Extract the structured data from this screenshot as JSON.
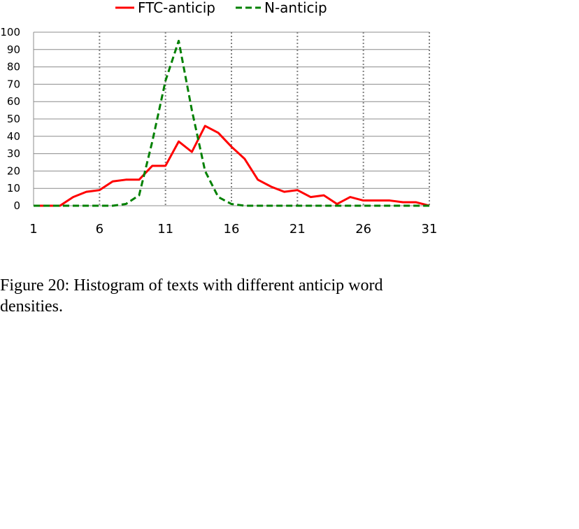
{
  "caption": "Figure 20: Histogram of texts with different anticip word densities.",
  "chart_data": {
    "type": "line",
    "x": [
      1,
      2,
      3,
      4,
      5,
      6,
      7,
      8,
      9,
      10,
      11,
      12,
      13,
      14,
      15,
      16,
      17,
      18,
      19,
      20,
      21,
      22,
      23,
      24,
      25,
      26,
      27,
      28,
      29,
      30,
      31
    ],
    "xticks": [
      1,
      6,
      11,
      16,
      21,
      26,
      31
    ],
    "yticks": [
      0,
      10,
      20,
      30,
      40,
      50,
      60,
      70,
      80,
      90,
      100
    ],
    "xlim": [
      1,
      31
    ],
    "ylim": [
      0,
      100
    ],
    "grid": {
      "horizontal": true,
      "vertical_dotted_at": [
        6,
        11,
        16,
        21,
        26,
        31
      ]
    },
    "legend_position": "top",
    "series": [
      {
        "name": "FTC-anticip",
        "color": "#ff0000",
        "style": "solid",
        "values": [
          0,
          0,
          0,
          5,
          8,
          9,
          14,
          15,
          15,
          23,
          23,
          37,
          31,
          46,
          42,
          34,
          27,
          15,
          11,
          8,
          9,
          5,
          6,
          1,
          5,
          3,
          3,
          3,
          2,
          2,
          0
        ]
      },
      {
        "name": "N-anticip",
        "color": "#008000",
        "style": "dashed",
        "values": [
          0,
          0,
          0,
          0,
          0,
          0,
          0,
          1,
          6,
          37,
          72,
          95,
          55,
          20,
          5,
          1,
          0,
          0,
          0,
          0,
          0,
          0,
          0,
          0,
          0,
          0,
          0,
          0,
          0,
          0,
          0
        ]
      }
    ]
  }
}
